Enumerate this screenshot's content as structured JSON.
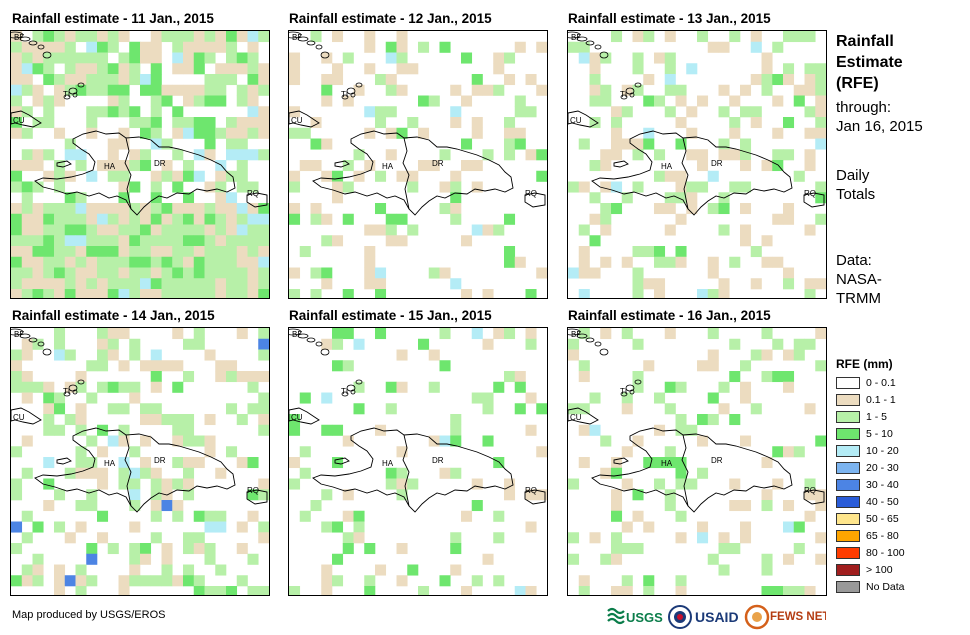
{
  "panels": [
    {
      "title": "Rainfall estimate - 11 Jan., 2015"
    },
    {
      "title": "Rainfall estimate - 12 Jan., 2015"
    },
    {
      "title": "Rainfall estimate - 13 Jan., 2015"
    },
    {
      "title": "Rainfall estimate - 14 Jan., 2015"
    },
    {
      "title": "Rainfall estimate - 15 Jan., 2015"
    },
    {
      "title": "Rainfall estimate - 16 Jan., 2015"
    }
  ],
  "map_labels": {
    "bf": "BF",
    "cu": "CU",
    "ti": "TI",
    "ha": "HA",
    "dr": "DR",
    "rq": "RQ"
  },
  "side": {
    "title1": "Rainfall",
    "title2": "Estimate",
    "title3": "(RFE)",
    "through": "through:",
    "date": "Jan 16, 2015",
    "daily": "Daily",
    "totals": "Totals",
    "data1": "Data:",
    "data2": "NASA-",
    "data3": "TRMM"
  },
  "legend": {
    "title": "RFE (mm)",
    "items": [
      {
        "label": "0 - 0.1",
        "color": "#ffffff"
      },
      {
        "label": "0.1 - 1",
        "color": "#ecdcc0"
      },
      {
        "label": "1 - 5",
        "color": "#b7f0a8"
      },
      {
        "label": "5 - 10",
        "color": "#6ee66e"
      },
      {
        "label": "10 - 20",
        "color": "#b4ecf6"
      },
      {
        "label": "20 - 30",
        "color": "#7cb4f0"
      },
      {
        "label": "30 - 40",
        "color": "#4c84e4"
      },
      {
        "label": "40 - 50",
        "color": "#2a5cd8"
      },
      {
        "label": "50 - 65",
        "color": "#ffe68c"
      },
      {
        "label": "65 - 80",
        "color": "#ffa500"
      },
      {
        "label": "80 - 100",
        "color": "#ff3c00"
      },
      {
        "label": "> 100",
        "color": "#a01e1e"
      },
      {
        "label": "No Data",
        "color": "#999999"
      }
    ]
  },
  "footer": "Map produced by USGS/EROS",
  "logos": {
    "usgs": "USGS",
    "usaid": "USAID",
    "fews": "FEWS NET"
  }
}
